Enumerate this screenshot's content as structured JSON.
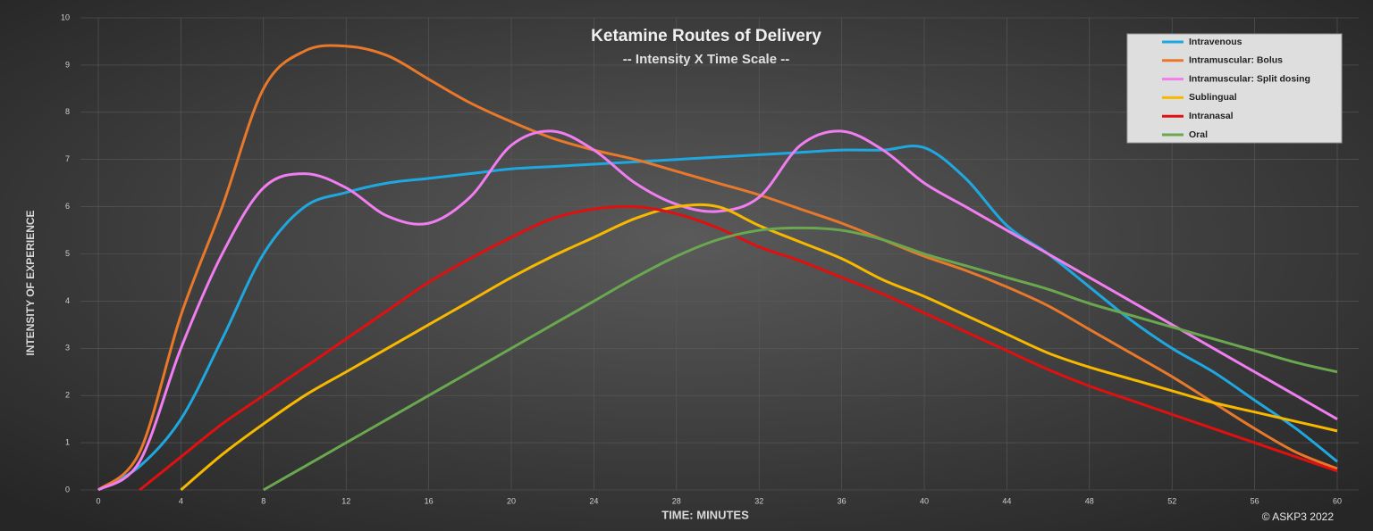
{
  "chart_data": {
    "type": "line",
    "title": "Ketamine Routes of Delivery",
    "subtitle": "-- Intensity X Time Scale --",
    "x_label": "TIME:  MINUTES",
    "y_label": "INTENSITY OF EXPERIENCE",
    "annotation": "© ASKP3 2022",
    "x": [
      0,
      2,
      4,
      6,
      8,
      10,
      12,
      14,
      16,
      18,
      20,
      22,
      24,
      26,
      28,
      30,
      32,
      34,
      36,
      38,
      40,
      42,
      44,
      46,
      48,
      50,
      52,
      54,
      56,
      58,
      60
    ],
    "xlim": [
      0,
      60
    ],
    "xticks": [
      0,
      4,
      8,
      12,
      16,
      20,
      24,
      28,
      32,
      36,
      40,
      44,
      48,
      52,
      56,
      60
    ],
    "ylim": [
      0,
      10
    ],
    "yticks": [
      0,
      1,
      2,
      3,
      4,
      5,
      6,
      7,
      8,
      9,
      10
    ],
    "grid": true,
    "smooth": true,
    "legend": "top-right",
    "series": [
      {
        "name": "Intravenous",
        "color": "#1fa8e0",
        "values": [
          0,
          0.5,
          1.5,
          3.2,
          5.0,
          6.0,
          6.3,
          6.5,
          6.6,
          6.7,
          6.8,
          6.85,
          6.9,
          6.95,
          7.0,
          7.05,
          7.1,
          7.15,
          7.2,
          7.2,
          7.25,
          6.6,
          5.6,
          5.0,
          4.3,
          3.6,
          3.0,
          2.5,
          1.9,
          1.3,
          0.6
        ]
      },
      {
        "name": "Intramuscular: Bolus",
        "color": "#e8782a",
        "values": [
          0,
          0.8,
          3.7,
          6.0,
          8.5,
          9.3,
          9.4,
          9.2,
          8.7,
          8.2,
          7.8,
          7.45,
          7.2,
          7.0,
          6.75,
          6.5,
          6.25,
          5.95,
          5.65,
          5.3,
          4.95,
          4.65,
          4.3,
          3.9,
          3.4,
          2.9,
          2.4,
          1.85,
          1.3,
          0.8,
          0.45
        ]
      },
      {
        "name": "Intramuscular: Split dosing",
        "color": "#f07ef0",
        "values": [
          0,
          0.6,
          3.0,
          5.0,
          6.4,
          6.7,
          6.4,
          5.8,
          5.65,
          6.2,
          7.3,
          7.6,
          7.2,
          6.5,
          6.05,
          5.9,
          6.2,
          7.3,
          7.6,
          7.2,
          6.5,
          6.0,
          5.5,
          5.0,
          4.5,
          4.0,
          3.5,
          3.0,
          2.5,
          2.0,
          1.5
        ]
      },
      {
        "name": "Sublingual",
        "color": "#f7b800",
        "values": [
          null,
          null,
          0,
          0.75,
          1.4,
          2.0,
          2.5,
          3.0,
          3.5,
          4.0,
          4.5,
          4.95,
          5.35,
          5.75,
          6.0,
          6.0,
          5.6,
          5.25,
          4.9,
          4.45,
          4.1,
          3.7,
          3.3,
          2.9,
          2.6,
          2.35,
          2.1,
          1.85,
          1.65,
          1.45,
          1.25
        ]
      },
      {
        "name": "Intranasal",
        "color": "#e01010",
        "values": [
          null,
          0,
          0.7,
          1.4,
          2.0,
          2.6,
          3.2,
          3.8,
          4.4,
          4.9,
          5.35,
          5.75,
          5.95,
          6.0,
          5.85,
          5.55,
          5.15,
          4.85,
          4.5,
          4.15,
          3.75,
          3.35,
          2.95,
          2.55,
          2.2,
          1.9,
          1.6,
          1.3,
          1.0,
          0.7,
          0.4
        ]
      },
      {
        "name": "Oral",
        "color": "#6aa84f",
        "values": [
          null,
          null,
          null,
          null,
          0,
          0.5,
          1.0,
          1.5,
          2.0,
          2.5,
          3.0,
          3.5,
          4.0,
          4.5,
          4.95,
          5.3,
          5.5,
          5.55,
          5.5,
          5.3,
          5.0,
          4.75,
          4.5,
          4.25,
          3.95,
          3.7,
          3.45,
          3.2,
          2.95,
          2.7,
          2.5
        ]
      }
    ]
  }
}
